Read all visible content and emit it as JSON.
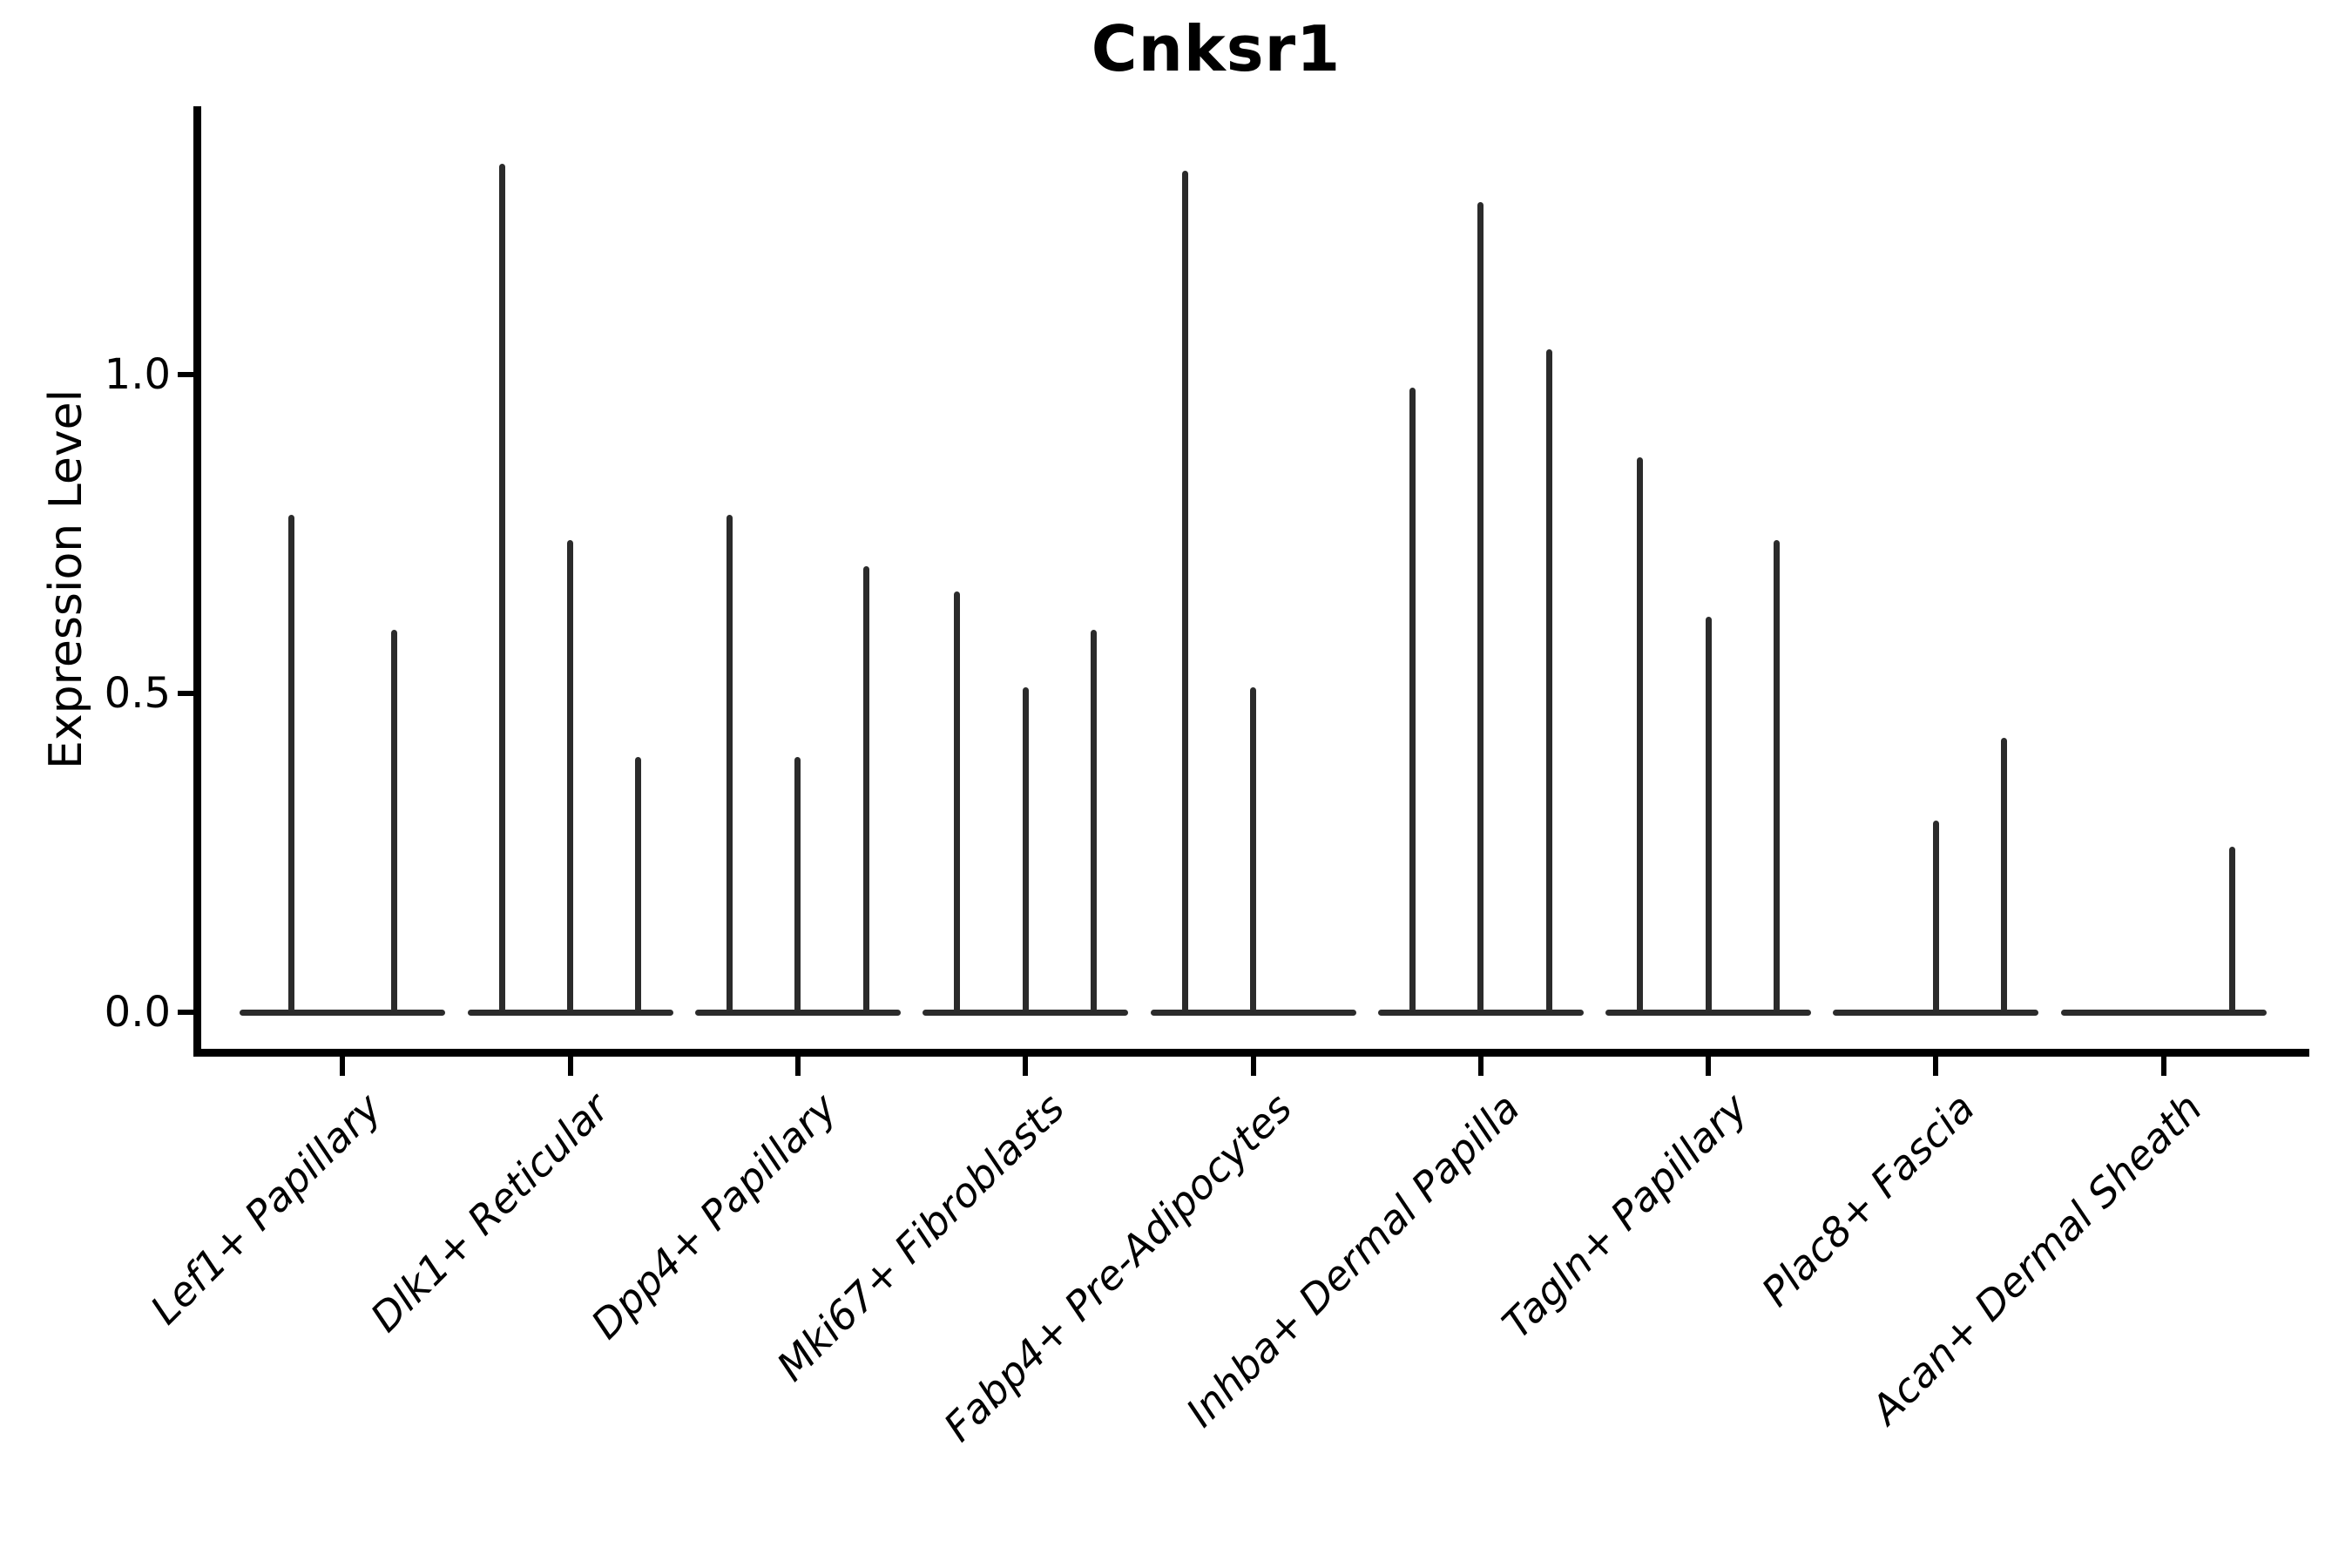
{
  "title": "Cnksr1",
  "y_axis": {
    "label": "Expression Level",
    "tick_labels": [
      "0.0",
      "0.5",
      "1.0"
    ]
  },
  "chart_data": {
    "type": "violin",
    "title": "Cnksr1",
    "xlabel": "",
    "ylabel": "Expression Level",
    "yticks": [
      0.0,
      0.5,
      1.0
    ],
    "ylim": [
      -0.06,
      1.43
    ],
    "grid": false,
    "legend": "none",
    "categories": [
      "Lef1+ Papillary",
      "Dlk1+ Reticular",
      "Dpp4+ Papillary",
      "Mki67+ Fibroblasts",
      "Fabp4+ Pre-Adipocytes",
      "Inhba+ Dermal Papilla",
      "Tagln+ Papillary",
      "Plac8+ Fascia",
      "Acan+ Dermal Sheath"
    ],
    "series": [
      {
        "category": "Lef1+ Papillary",
        "violin_peak_expression": [
          0.78,
          0.6
        ]
      },
      {
        "category": "Dlk1+ Reticular",
        "violin_peak_expression": [
          1.33,
          0.74,
          0.4
        ]
      },
      {
        "category": "Dpp4+ Papillary",
        "violin_peak_expression": [
          0.78,
          0.4,
          0.7
        ]
      },
      {
        "category": "Mki67+ Fibroblasts",
        "violin_peak_expression": [
          0.66,
          0.51,
          0.6
        ]
      },
      {
        "category": "Fabp4+ Pre-Adipocytes",
        "violin_peak_expression": [
          1.32,
          0.51,
          0.0
        ]
      },
      {
        "category": "Inhba+ Dermal Papilla",
        "violin_peak_expression": [
          0.98,
          1.27,
          1.04
        ]
      },
      {
        "category": "Tagln+ Papillary",
        "violin_peak_expression": [
          0.87,
          0.62,
          0.74
        ]
      },
      {
        "category": "Plac8+ Fascia",
        "violin_peak_expression": [
          0.0,
          0.3,
          0.43
        ]
      },
      {
        "category": "Acan+ Dermal Sheath",
        "violin_peak_expression": [
          0.0,
          0.0,
          0.26
        ]
      }
    ],
    "notes": "Very thin violins: expression is ~0 for most cells (flat base line at y=0 spanning each group) with a narrow spike rising to the listed peak value for each sample violin. A peak value of 0.0 means a flat violin with no spike.",
    "colors": {
      "violin": "#2b2b2b",
      "axis": "#000000",
      "background": "#ffffff"
    }
  }
}
